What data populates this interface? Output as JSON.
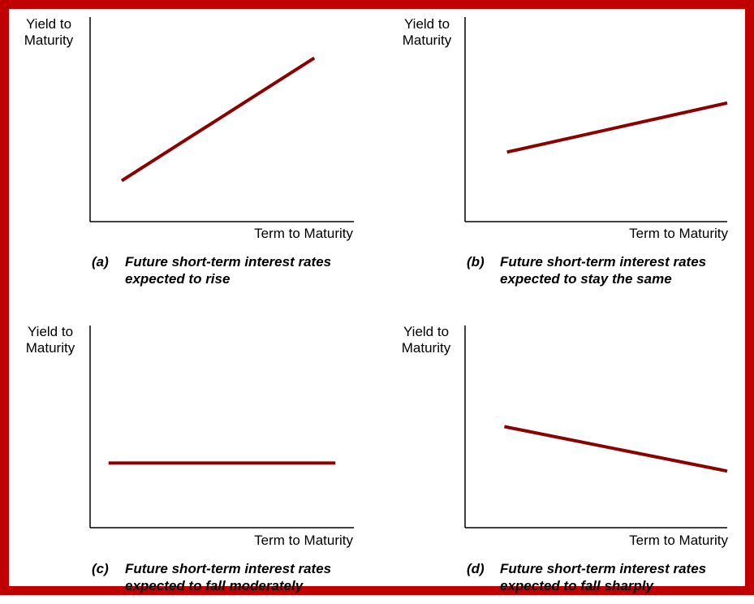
{
  "accent_color": "#c00000",
  "line_color": "#8b0000",
  "chart_data": [
    {
      "type": "line",
      "id": "a",
      "ylabel": "Yield to Maturity",
      "xlabel": "Term to Maturity",
      "caption_tag": "(a)",
      "caption_line1": "Future short-term interest rates",
      "caption_line2": "expected to rise",
      "xlim": [
        0,
        10
      ],
      "ylim": [
        0,
        10
      ],
      "series": [
        {
          "x": [
            1.2,
            8.5
          ],
          "y": [
            2.0,
            8.0
          ]
        }
      ]
    },
    {
      "type": "line",
      "id": "b",
      "ylabel": "Yield to Maturity",
      "xlabel": "Term to Maturity",
      "caption_tag": "(b)",
      "caption_line1": "Future short-term interest rates",
      "caption_line2": "expected to stay the same",
      "xlim": [
        0,
        10
      ],
      "ylim": [
        0,
        10
      ],
      "series": [
        {
          "x": [
            1.6,
            10.0
          ],
          "y": [
            3.4,
            5.8
          ]
        }
      ]
    },
    {
      "type": "line",
      "id": "c",
      "ylabel": "Yield to Maturity",
      "xlabel": "Term to Maturity",
      "caption_tag": "(c)",
      "caption_line1": "Future short-term interest rates",
      "caption_line2": "expected to fall moderately",
      "xlim": [
        0,
        10
      ],
      "ylim": [
        0,
        10
      ],
      "series": [
        {
          "x": [
            0.7,
            9.3
          ],
          "y": [
            3.2,
            3.2
          ]
        }
      ]
    },
    {
      "type": "line",
      "id": "d",
      "ylabel": "Yield to Maturity",
      "xlabel": "Term to Maturity",
      "caption_tag": "(d)",
      "caption_line1": "Future short-term interest rates",
      "caption_line2": "expected to fall sharply",
      "xlim": [
        0,
        10
      ],
      "ylim": [
        0,
        10
      ],
      "series": [
        {
          "x": [
            1.5,
            10.0
          ],
          "y": [
            5.0,
            2.8
          ]
        }
      ]
    }
  ]
}
